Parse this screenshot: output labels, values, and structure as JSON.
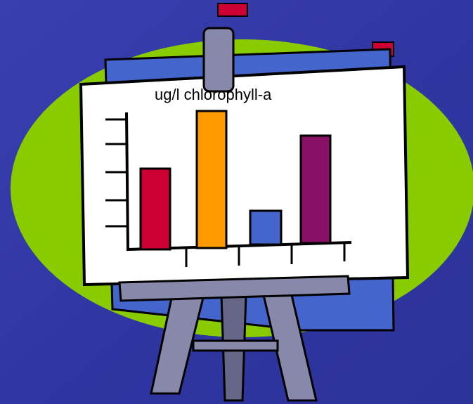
{
  "board": {
    "label": "ug/l chlorophyll-a"
  }
}
